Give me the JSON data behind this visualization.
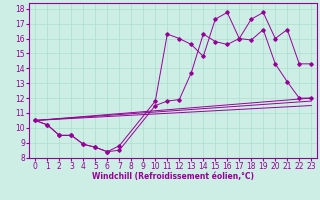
{
  "xlabel": "Windchill (Refroidissement éolien,°C)",
  "bg_color": "#cceee4",
  "line_color": "#990099",
  "grid_color": "#aaddcc",
  "xmin": -0.5,
  "xmax": 23.5,
  "ymin": 8,
  "ymax": 18.4,
  "yticks": [
    8,
    9,
    10,
    11,
    12,
    13,
    14,
    15,
    16,
    17,
    18
  ],
  "xticks": [
    0,
    1,
    2,
    3,
    4,
    5,
    6,
    7,
    8,
    9,
    10,
    11,
    12,
    13,
    14,
    15,
    16,
    17,
    18,
    19,
    20,
    21,
    22,
    23
  ],
  "series1_x": [
    0,
    1,
    2,
    3,
    4,
    5,
    6,
    7,
    10,
    11,
    12,
    13,
    14,
    15,
    16,
    17,
    18,
    19,
    20,
    21,
    22,
    23
  ],
  "series1_y": [
    10.5,
    10.2,
    9.5,
    9.5,
    8.9,
    8.7,
    8.4,
    8.5,
    11.5,
    11.8,
    11.9,
    13.7,
    16.3,
    15.8,
    15.6,
    16.0,
    17.3,
    17.75,
    16.0,
    16.6,
    14.3,
    14.3
  ],
  "series2_x": [
    0,
    1,
    2,
    3,
    4,
    5,
    6,
    7,
    10,
    11,
    12,
    13,
    14,
    15,
    16,
    17,
    18,
    19,
    20,
    21,
    22,
    23
  ],
  "series2_y": [
    10.5,
    10.2,
    9.5,
    9.5,
    8.9,
    8.7,
    8.4,
    8.8,
    11.8,
    16.3,
    16.0,
    15.6,
    14.8,
    17.3,
    17.75,
    16.0,
    15.9,
    16.6,
    14.3,
    13.1,
    12.0,
    12.0
  ],
  "line1_x": [
    0,
    23
  ],
  "line1_y": [
    10.5,
    12.0
  ],
  "line2_x": [
    0,
    23
  ],
  "line2_y": [
    10.5,
    11.5
  ],
  "line3_x": [
    0,
    23
  ],
  "line3_y": [
    10.5,
    11.8
  ],
  "tick_fontsize": 5.5,
  "xlabel_fontsize": 5.5,
  "lw": 0.7,
  "ms": 1.8
}
